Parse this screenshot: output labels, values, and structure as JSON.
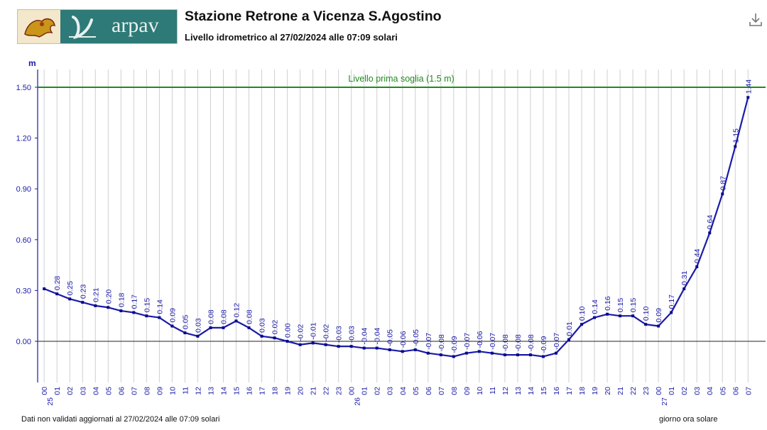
{
  "header": {
    "logo_text": "arpav",
    "title": "Stazione Retrone a Vicenza S.Agostino",
    "subtitle": "Livello idrometrico al 27/02/2024 alle 07:09 solari",
    "download_icon": "download-icon"
  },
  "footer": {
    "note": "Dati non validati aggiornati al 27/02/2024 alle 07:09 solari",
    "xlabel": "giorno ora solare"
  },
  "chart_data": {
    "type": "line",
    "ylabel": "m",
    "ylim": [
      -0.24,
      1.6
    ],
    "yticks": [
      "1.50",
      "1.20",
      "0.90",
      "0.60",
      "0.30",
      "0.00"
    ],
    "grid": "vertical",
    "colors": {
      "line": "#1a1aa8",
      "point": "#0a0a90",
      "threshold": "#1f8a1f",
      "grid": "#cfcfcf",
      "axis": "#1a1aa8"
    },
    "threshold": {
      "label": "Livello prima soglia (1.5 m)",
      "value": 1.5
    },
    "x_labels": [
      "00",
      "01",
      "02",
      "03",
      "04",
      "05",
      "06",
      "07",
      "08",
      "09",
      "10",
      "11",
      "12",
      "13",
      "14",
      "15",
      "16",
      "17",
      "18",
      "19",
      "20",
      "21",
      "22",
      "23",
      "00",
      "01",
      "02",
      "03",
      "04",
      "05",
      "06",
      "07",
      "08",
      "09",
      "10",
      "11",
      "12",
      "13",
      "14",
      "15",
      "16",
      "17",
      "18",
      "19",
      "20",
      "21",
      "22",
      "23",
      "00",
      "01",
      "02",
      "03",
      "04",
      "05",
      "06",
      "07"
    ],
    "day_labels": [
      {
        "index": 1,
        "text": "25"
      },
      {
        "index": 25,
        "text": "26"
      },
      {
        "index": 49,
        "text": "27"
      }
    ],
    "series": [
      {
        "values": [
          0.31,
          0.28,
          0.25,
          0.23,
          0.21,
          0.2,
          0.18,
          0.17,
          0.15,
          0.14,
          0.09,
          0.05,
          0.03,
          0.08,
          0.08,
          0.12,
          0.08,
          0.03,
          0.02,
          0.0,
          -0.02,
          -0.01,
          -0.02,
          -0.03,
          -0.03,
          -0.04,
          -0.04,
          -0.05,
          -0.06,
          -0.05,
          -0.07,
          -0.08,
          -0.09,
          -0.07,
          -0.06,
          -0.07,
          -0.08,
          -0.08,
          -0.08,
          -0.09,
          -0.07,
          0.01,
          0.1,
          0.14,
          0.16,
          0.15,
          0.15,
          0.1,
          0.09,
          0.17,
          0.31,
          0.44,
          0.64,
          0.87,
          1.15,
          1.44
        ],
        "labels": [
          "",
          "0.28",
          "0.25",
          "0.23",
          "0.21",
          "0.20",
          "0.18",
          "0.17",
          "0.15",
          "0.14",
          "0.09",
          "0.05",
          "0.03",
          "0.08",
          "0.08",
          "0.12",
          "0.08",
          "0.03",
          "0.02",
          "0.00",
          "-0.02",
          "-0.01",
          "-0.02",
          "-0.03",
          "-0.03",
          "-0.04",
          "-0.04",
          "-0.05",
          "-0.06",
          "-0.05",
          "-0.07",
          "-0.08",
          "-0.09",
          "-0.07",
          "-0.06",
          "-0.07",
          "-0.08",
          "-0.08",
          "-0.08",
          "-0.09",
          "-0.07",
          "0.01",
          "0.10",
          "0.14",
          "0.16",
          "0.15",
          "0.15",
          "0.10",
          "0.09",
          "0.17",
          "0.31",
          "0.44",
          "0.64",
          "0.87",
          "1.15",
          "1.44"
        ]
      }
    ]
  }
}
